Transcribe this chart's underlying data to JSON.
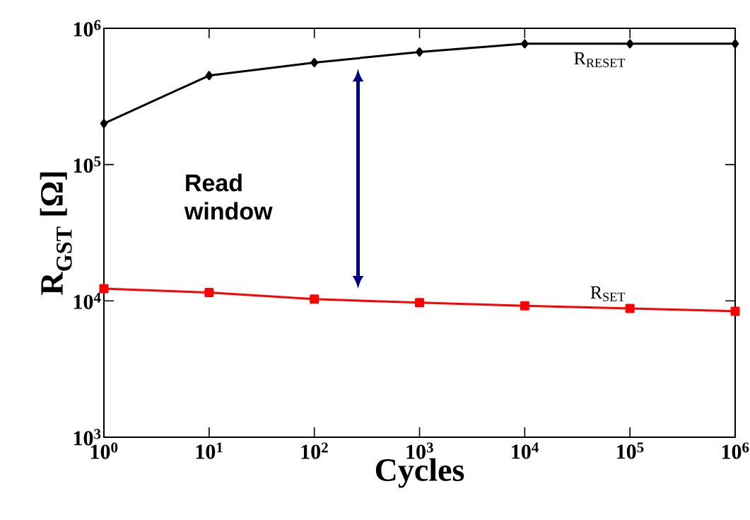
{
  "chart_data": {
    "type": "line",
    "xlabel": "Cycles",
    "ylabel": "R$_{GST}$ [Ω]",
    "log": "xy",
    "x": [
      1,
      10,
      100,
      1000,
      10000,
      100000,
      1000000
    ],
    "series": [
      {
        "name": "R$_{RESET}$",
        "color": "#000000",
        "marker": "diamond",
        "values": [
          200000,
          450000,
          560000,
          670000,
          770000,
          770000,
          770000
        ]
      },
      {
        "name": "R$_{SET}$",
        "color": "#ff0000",
        "marker": "square",
        "values": [
          12300,
          11500,
          10300,
          9700,
          9200,
          8800,
          8400
        ]
      }
    ],
    "xlim": [
      1,
      1000000
    ],
    "ylim": [
      1000,
      1000000
    ],
    "xticks": [
      {
        "value": 1,
        "label": "10$^{0}$"
      },
      {
        "value": 10,
        "label": "10$^{1}$"
      },
      {
        "value": 100,
        "label": "10$^{2}$"
      },
      {
        "value": 1000,
        "label": "10$^{3}$"
      },
      {
        "value": 10000,
        "label": "10$^{4}$"
      },
      {
        "value": 100000,
        "label": "10$^{5}$"
      },
      {
        "value": 1000000,
        "label": "10$^{6}$"
      }
    ],
    "yticks": [
      {
        "value": 1000,
        "label": "10$^{3}$"
      },
      {
        "value": 10000,
        "label": "10$^{4}$"
      },
      {
        "value": 100000,
        "label": "10$^{5}$"
      },
      {
        "value": 1000000,
        "label": "10$^{6}$"
      }
    ],
    "grid": false,
    "annotations": [
      "Read window"
    ]
  }
}
